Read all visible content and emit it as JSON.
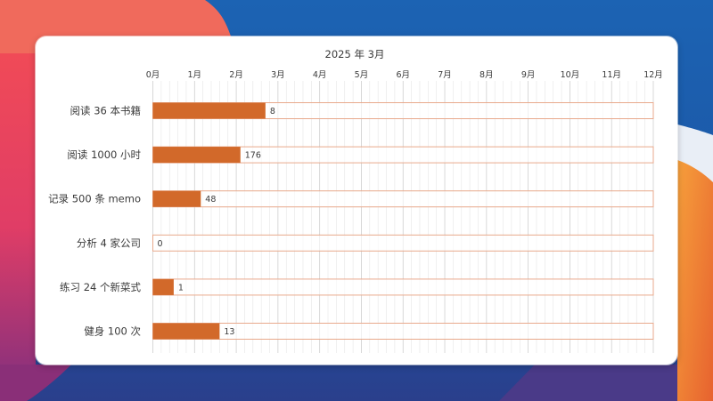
{
  "colors": {
    "bar_fill": "#d2692a",
    "track_stroke": "#e8a98c",
    "grid_minor": "#e6e6e6",
    "grid_major": "#cfcfcf",
    "text": "#3a3a3a",
    "card_bg": "#ffffff"
  },
  "chart_data": {
    "type": "bar",
    "orientation": "horizontal",
    "title": "2025 年 3月",
    "xlabel": "",
    "ylabel": "",
    "x_unit": "months",
    "xlim": [
      0,
      12
    ],
    "x_ticks": [
      "0月",
      "1月",
      "2月",
      "3月",
      "4月",
      "5月",
      "6月",
      "7月",
      "8月",
      "9月",
      "10月",
      "11月",
      "12月"
    ],
    "grid": "on",
    "legend": "none",
    "categories": [
      "阅读 36 本书籍",
      "阅读 1000 小时",
      "记录 500 条 memo",
      "分析 4 家公司",
      "练习 24 个新菜式",
      "健身 100 次"
    ],
    "values": [
      2.7,
      2.1,
      1.15,
      0,
      0.5,
      1.6
    ],
    "track_max": 12,
    "data_labels": [
      "8",
      "176",
      "48",
      "0",
      "1",
      "13"
    ]
  }
}
